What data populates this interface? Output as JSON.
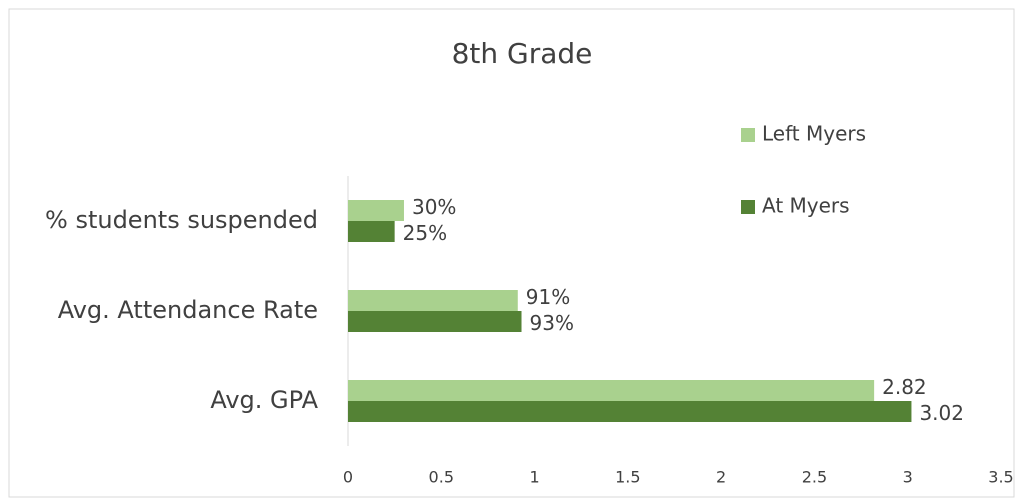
{
  "chart_data": {
    "type": "hbar",
    "title": "8th Grade",
    "categories": [
      "% students suspended",
      "Avg. Attendance Rate",
      "Avg.  GPA"
    ],
    "series": [
      {
        "name": "Left Myers",
        "color": "#a9d18e",
        "values": [
          0.3,
          0.91,
          2.82
        ],
        "value_labels": [
          "30%",
          "91%",
          "2.82"
        ]
      },
      {
        "name": "At Myers",
        "color": "#548235",
        "values": [
          0.25,
          0.93,
          3.02
        ],
        "value_labels": [
          "25%",
          "93%",
          "3.02"
        ]
      }
    ],
    "xlim": [
      0,
      3.5
    ],
    "xticks": [
      0,
      0.5,
      1,
      1.5,
      2,
      2.5,
      3,
      3.5
    ],
    "grid": false,
    "legend": "right"
  }
}
